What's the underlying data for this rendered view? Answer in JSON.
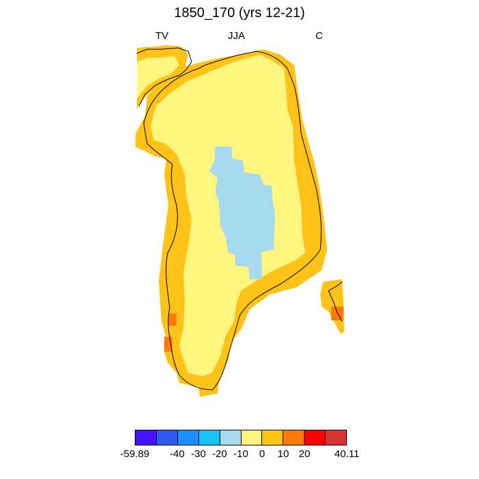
{
  "title": "1850_170 (yrs 12-21)",
  "subtitles": {
    "left": "TV",
    "center": "JJA",
    "right": "C"
  },
  "colorbar": {
    "colors": [
      "#4512ff",
      "#2d5af0",
      "#1f8cff",
      "#17c2f5",
      "#a7d9f0",
      "#fff57f",
      "#ffc217",
      "#ff7a00",
      "#ff0000",
      "#d93434"
    ],
    "labels": [
      "-59.89",
      "-40",
      "-30",
      "-20",
      "-10",
      "0",
      "10",
      "20",
      "40.11"
    ]
  },
  "map_data": {
    "region": "Greenland",
    "field_levels": [
      {
        "value_range": "-10 to 0",
        "color": "#a7d9f0",
        "area": "central interior ice sheet"
      },
      {
        "value_range": "0 to 10",
        "color": "#fff57f",
        "area": "broad interior and northern plateau"
      },
      {
        "value_range": "10 to 20",
        "color": "#ffc217",
        "area": "coastal margins"
      },
      {
        "value_range": "20 to 40",
        "color": "#ff7a00",
        "area": "scattered southwest and southeast coastal cells"
      }
    ]
  }
}
